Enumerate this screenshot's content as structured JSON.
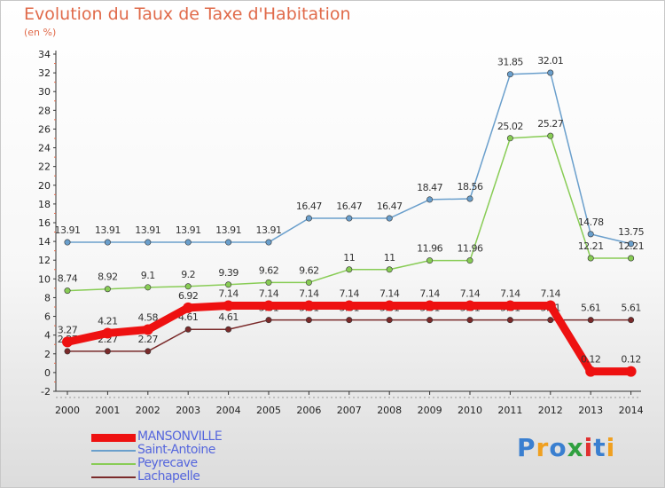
{
  "title": "Evolution du Taux de Taxe d'Habitation",
  "subtitle": "(en %)",
  "brand": {
    "text": "Proxiti",
    "colors": [
      "#3a7fd0",
      "#f0a020",
      "#3a7fd0",
      "#30a040",
      "#e03030",
      "#3a7fd0",
      "#f0a020"
    ]
  },
  "chart_data": {
    "type": "line",
    "x": [
      "2000",
      "2001",
      "2002",
      "2003",
      "2004",
      "2005",
      "2006",
      "2007",
      "2008",
      "2009",
      "2010",
      "2011",
      "2012",
      "2013",
      "2014"
    ],
    "ylim": [
      -2,
      34
    ],
    "yticks": [
      -2,
      0,
      2,
      4,
      6,
      8,
      10,
      12,
      14,
      16,
      18,
      20,
      22,
      24,
      26,
      28,
      30,
      32,
      34
    ],
    "grid": false,
    "legend_position": "bottom-left",
    "series": [
      {
        "name": "Saint-Antoine",
        "color": "#6a9fcc",
        "values": [
          13.91,
          13.91,
          13.91,
          13.91,
          13.91,
          13.91,
          16.47,
          16.47,
          16.47,
          18.47,
          18.56,
          31.85,
          32.01,
          14.78,
          13.75
        ],
        "labels": [
          "13.91",
          "13.91",
          "13.91",
          "13.91",
          "13.91",
          "13.91",
          "16.47",
          "16.47",
          "16.47",
          "18.47",
          "18.56",
          "31.85",
          "32.01",
          "14.78",
          "13.75"
        ]
      },
      {
        "name": "Peyrecave",
        "color": "#88cc55",
        "values": [
          8.74,
          8.92,
          9.1,
          9.2,
          9.39,
          9.62,
          9.62,
          11,
          11,
          11.96,
          11.96,
          25.02,
          25.27,
          12.21,
          12.21
        ],
        "labels": [
          "8.74",
          "8.92",
          "9.1",
          "9.2",
          "9.39",
          "9.62",
          "9.62",
          "11",
          "11",
          "11.96",
          "11.96",
          "25.02",
          "25.27",
          "12.21",
          "12.21"
        ]
      },
      {
        "name": "Lachapelle",
        "color": "#7a2a2a",
        "values": [
          2.27,
          2.27,
          2.27,
          4.61,
          4.61,
          5.61,
          5.61,
          5.61,
          5.61,
          5.61,
          5.61,
          5.61,
          5.61,
          5.61,
          5.61
        ],
        "labels": [
          "2.27",
          "2.27",
          "2.27",
          "4.61",
          "4.61",
          "5.61",
          "5.61",
          "5.61",
          "5.61",
          "5.61",
          "5.61",
          "5.61",
          "5.61",
          "5.61",
          "5.61"
        ]
      },
      {
        "name": "MANSONVILLE",
        "color": "#ee1111",
        "values": [
          3.27,
          4.21,
          4.58,
          6.92,
          7.14,
          7.14,
          7.14,
          7.14,
          7.14,
          7.14,
          7.14,
          7.14,
          7.14,
          0.12,
          0.12
        ],
        "labels": [
          "3.27",
          "4.21",
          "4.58",
          "6.92",
          "7.14",
          "7.14",
          "7.14",
          "7.14",
          "7.14",
          "7.14",
          "7.14",
          "7.14",
          "7.14",
          "0.12",
          "0.12"
        ]
      }
    ],
    "legend_order": [
      "MANSONVILLE",
      "Saint-Antoine",
      "Peyrecave",
      "Lachapelle"
    ]
  }
}
